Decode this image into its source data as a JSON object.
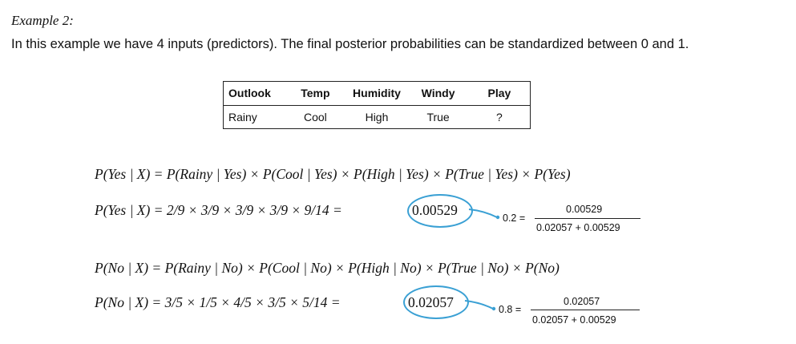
{
  "heading": "Example 2:",
  "intro": "In this example we have 4 inputs (predictors). The final posterior probabilities can be standardized between 0 and 1.",
  "table": {
    "headers": [
      "Outlook",
      "Temp",
      "Humidity",
      "Windy",
      "Play"
    ],
    "row": [
      "Rainy",
      "Cool",
      "High",
      "True",
      "?"
    ]
  },
  "yes": {
    "formula": "P(Yes | X) = P(Rainy | Yes) × P(Cool | Yes) × P(High | Yes) × P(True | Yes) × P(Yes)",
    "calc": "P(Yes | X) = 2/9 × 3/9 × 3/9 × 3/9 × 9/14 =",
    "value": "0.00529",
    "norm_label": "0.2 =",
    "numerator": "0.00529",
    "denominator": "0.02057 + 0.00529"
  },
  "no": {
    "formula": "P(No | X) = P(Rainy | No) × P(Cool | No) × P(High | No) × P(True | No) × P(No)",
    "calc": "P(No | X) = 3/5 × 1/5 × 4/5 × 3/5 × 5/14 =",
    "value": "0.02057",
    "norm_label": "0.8 =",
    "numerator": "0.02057",
    "denominator": "0.02057 + 0.00529"
  },
  "colors": {
    "highlight": "#3aa0d4"
  }
}
